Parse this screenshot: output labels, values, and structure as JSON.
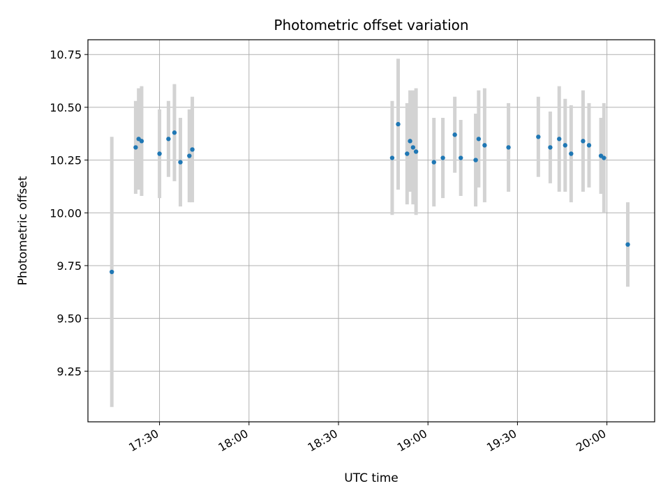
{
  "chart_data": {
    "type": "scatter",
    "title": "Photometric offset variation",
    "xlabel": "UTC time",
    "ylabel": "Photometric offset",
    "x_ticks": [
      "17:30",
      "18:00",
      "18:30",
      "19:00",
      "19:30",
      "20:00"
    ],
    "y_ticks": [
      "9.25",
      "9.50",
      "9.75",
      "10.00",
      "10.25",
      "10.50",
      "10.75"
    ],
    "x_range": [
      "17:06",
      "20:16"
    ],
    "ylim": [
      9.01,
      10.82
    ],
    "grid": true,
    "colors": {
      "point": "#1f77b4",
      "errorbar": "#d3d3d3",
      "grid": "#b0b0b0"
    },
    "series": [
      {
        "points": [
          {
            "x": "17:14",
            "y": 9.72,
            "err": 0.64
          },
          {
            "x": "17:22",
            "y": 10.31,
            "err": 0.22
          },
          {
            "x": "17:23",
            "y": 10.35,
            "err": 0.24
          },
          {
            "x": "17:24",
            "y": 10.34,
            "err": 0.26
          },
          {
            "x": "17:30",
            "y": 10.28,
            "err": 0.21
          },
          {
            "x": "17:33",
            "y": 10.35,
            "err": 0.18
          },
          {
            "x": "17:35",
            "y": 10.38,
            "err": 0.23
          },
          {
            "x": "17:37",
            "y": 10.24,
            "err": 0.21
          },
          {
            "x": "17:40",
            "y": 10.27,
            "err": 0.22
          },
          {
            "x": "17:41",
            "y": 10.3,
            "err": 0.25
          },
          {
            "x": "18:48",
            "y": 10.26,
            "err": 0.27
          },
          {
            "x": "18:50",
            "y": 10.42,
            "err": 0.31
          },
          {
            "x": "18:53",
            "y": 10.28,
            "err": 0.24
          },
          {
            "x": "18:54",
            "y": 10.34,
            "err": 0.24
          },
          {
            "x": "18:55",
            "y": 10.31,
            "err": 0.27
          },
          {
            "x": "18:56",
            "y": 10.29,
            "err": 0.3
          },
          {
            "x": "19:02",
            "y": 10.24,
            "err": 0.21
          },
          {
            "x": "19:05",
            "y": 10.26,
            "err": 0.19
          },
          {
            "x": "19:09",
            "y": 10.37,
            "err": 0.18
          },
          {
            "x": "19:11",
            "y": 10.26,
            "err": 0.18
          },
          {
            "x": "19:16",
            "y": 10.25,
            "err": 0.22
          },
          {
            "x": "19:17",
            "y": 10.35,
            "err": 0.23
          },
          {
            "x": "19:19",
            "y": 10.32,
            "err": 0.27
          },
          {
            "x": "19:27",
            "y": 10.31,
            "err": 0.21
          },
          {
            "x": "19:37",
            "y": 10.36,
            "err": 0.19
          },
          {
            "x": "19:41",
            "y": 10.31,
            "err": 0.17
          },
          {
            "x": "19:44",
            "y": 10.35,
            "err": 0.25
          },
          {
            "x": "19:46",
            "y": 10.32,
            "err": 0.22
          },
          {
            "x": "19:48",
            "y": 10.28,
            "err": 0.23
          },
          {
            "x": "19:52",
            "y": 10.34,
            "err": 0.24
          },
          {
            "x": "19:54",
            "y": 10.32,
            "err": 0.2
          },
          {
            "x": "19:58",
            "y": 10.27,
            "err": 0.18
          },
          {
            "x": "19:59",
            "y": 10.26,
            "err": 0.26
          },
          {
            "x": "20:07",
            "y": 9.85,
            "err": 0.2
          }
        ]
      }
    ]
  }
}
